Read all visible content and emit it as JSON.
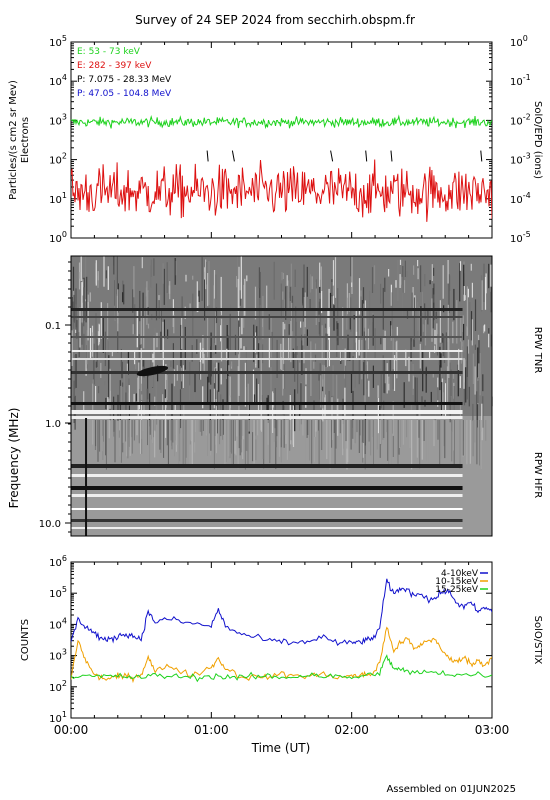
{
  "page": {
    "title": "Survey of 24 SEP 2024 from secchirh.obspm.fr",
    "footer": "Assembled on 01JUN2025"
  },
  "colors": {
    "green": "#1ed21e",
    "red": "#dd1111",
    "blue": "#1111cc",
    "orange": "#f0a000",
    "black": "#000000"
  },
  "chart_data": [
    {
      "id": "epd",
      "type": "line",
      "ylabel": "Particles/(s cm2 sr Mev)",
      "ylabel2": "Electrons",
      "right_label": "SolO/EPD (ions)",
      "ylim_exp": [
        0,
        5
      ],
      "y_scale": "log",
      "y_ticks": [
        "10^0",
        "10^1",
        "10^2",
        "10^3",
        "10^4",
        "10^5"
      ],
      "y2_ticks": [
        "10^-5",
        "10^-4",
        "10^-3",
        "10^-2",
        "10^-1",
        "10^0"
      ],
      "xlim_hours": [
        0,
        3
      ],
      "legend": [
        {
          "label": "E: 53 - 73 keV",
          "color": "green"
        },
        {
          "label": "E: 282 - 397 keV",
          "color": "red"
        },
        {
          "label": "P: 7.075 - 28.33 MeV",
          "color": "black"
        },
        {
          "label": "P: 47.05 - 104.8 MeV",
          "color": "blue"
        }
      ],
      "series": [
        {
          "name": "E: 53 - 73 keV",
          "color": "green",
          "level": 900,
          "scatter_dex": 0.12
        },
        {
          "name": "E: 282 - 397 keV",
          "color": "red",
          "level": 15,
          "scatter_dex": 0.6
        }
      ],
      "proton_marks_hours": [
        0.97,
        1.15,
        1.85,
        2.1,
        2.28,
        2.92
      ]
    },
    {
      "id": "rpw",
      "type": "heatmap",
      "ylabel": "Frequency (MHz)",
      "y_ticks": [
        "0.1",
        "1.0",
        "10.0"
      ],
      "right_labels": [
        "RPW TNR",
        "RPW HFR"
      ],
      "xlim_hours": [
        0,
        3
      ]
    },
    {
      "id": "stix",
      "type": "line",
      "ylabel": "COUNTS",
      "right_label": "SolO/STIX",
      "y_scale": "log",
      "ylim_exp": [
        1,
        6
      ],
      "y_ticks": [
        "10^1",
        "10^2",
        "10^3",
        "10^4",
        "10^5",
        "10^6"
      ],
      "xlabel": "Time (UT)",
      "x_ticks": [
        "00:00",
        "01:00",
        "02:00",
        "03:00"
      ],
      "xlim_hours": [
        0,
        3
      ],
      "legend": [
        {
          "label": "4-10keV",
          "color": "blue"
        },
        {
          "label": "10-15keV",
          "color": "orange"
        },
        {
          "label": "15-25keV",
          "color": "green"
        }
      ],
      "series": [
        {
          "name": "4-10keV",
          "color": "blue",
          "x": [
            0.0,
            0.05,
            0.1,
            0.15,
            0.2,
            0.25,
            0.3,
            0.35,
            0.4,
            0.45,
            0.5,
            0.55,
            0.6,
            0.7,
            0.8,
            0.9,
            1.0,
            1.05,
            1.1,
            1.2,
            1.3,
            1.4,
            1.5,
            1.6,
            1.7,
            1.8,
            1.9,
            2.0,
            2.05,
            2.1,
            2.15,
            2.2,
            2.25,
            2.3,
            2.35,
            2.4,
            2.45,
            2.5,
            2.55,
            2.6,
            2.65,
            2.7,
            2.75,
            2.8,
            2.85,
            2.9,
            2.95,
            3.0
          ],
          "values": [
            3000,
            14000,
            9000,
            6000,
            4000,
            3000,
            3500,
            4500,
            5000,
            4000,
            3500,
            25000,
            12000,
            15000,
            12000,
            10000,
            9000,
            30000,
            9000,
            5000,
            4000,
            3000,
            2800,
            2500,
            3000,
            4000,
            2500,
            2500,
            2800,
            3000,
            3500,
            8000,
            250000,
            90000,
            150000,
            120000,
            90000,
            100000,
            60000,
            70000,
            120000,
            100000,
            50000,
            35000,
            50000,
            25000,
            35000,
            25000
          ]
        },
        {
          "name": "10-15keV",
          "color": "orange",
          "x": [
            0.0,
            0.05,
            0.1,
            0.15,
            0.2,
            0.25,
            0.3,
            0.35,
            0.4,
            0.45,
            0.5,
            0.55,
            0.6,
            0.7,
            0.8,
            0.9,
            1.0,
            1.05,
            1.1,
            1.2,
            1.3,
            1.4,
            1.5,
            1.6,
            1.7,
            1.8,
            1.9,
            2.0,
            2.05,
            2.1,
            2.15,
            2.2,
            2.25,
            2.3,
            2.35,
            2.4,
            2.45,
            2.5,
            2.55,
            2.6,
            2.65,
            2.7,
            2.75,
            2.8,
            2.85,
            2.9,
            2.95,
            3.0
          ],
          "values": [
            200,
            3000,
            800,
            300,
            200,
            180,
            200,
            210,
            220,
            200,
            250,
            900,
            300,
            500,
            280,
            250,
            450,
            800,
            400,
            220,
            200,
            210,
            250,
            230,
            220,
            250,
            210,
            220,
            230,
            240,
            260,
            600,
            8000,
            1500,
            2500,
            3500,
            1500,
            2500,
            3000,
            3500,
            1200,
            800,
            600,
            1000,
            500,
            700,
            500,
            900
          ]
        },
        {
          "name": "15-25keV",
          "color": "green",
          "x": [
            0.0,
            0.1,
            0.2,
            0.3,
            0.4,
            0.5,
            0.6,
            0.7,
            0.8,
            0.9,
            1.0,
            1.1,
            1.2,
            1.3,
            1.4,
            1.5,
            1.6,
            1.7,
            1.8,
            1.9,
            2.0,
            2.1,
            2.2,
            2.25,
            2.3,
            2.35,
            2.4,
            2.5,
            2.6,
            2.7,
            2.8,
            2.9,
            3.0
          ],
          "values": [
            230,
            220,
            210,
            220,
            210,
            200,
            230,
            220,
            210,
            200,
            220,
            210,
            200,
            210,
            220,
            200,
            210,
            250,
            220,
            210,
            200,
            220,
            300,
            900,
            400,
            350,
            300,
            280,
            300,
            260,
            240,
            250,
            240
          ]
        }
      ]
    }
  ]
}
